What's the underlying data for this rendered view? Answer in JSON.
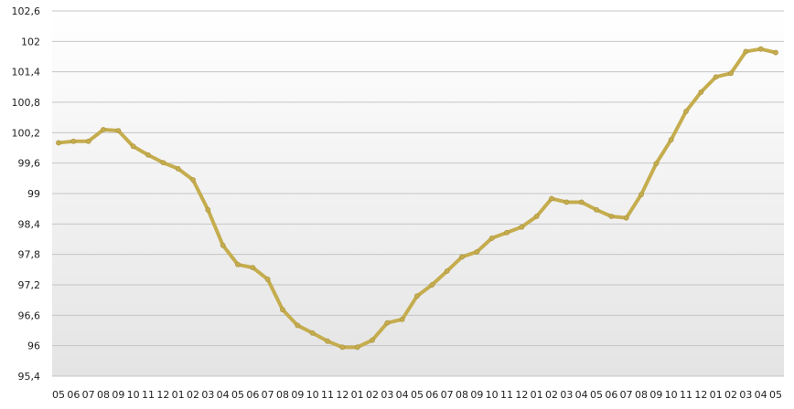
{
  "chart_data": {
    "type": "line",
    "title": "",
    "xlabel": "",
    "ylabel": "",
    "ylim": [
      95.4,
      102.6
    ],
    "yticks": [
      "95,4",
      "96",
      "96,6",
      "97,2",
      "97,8",
      "98,4",
      "99",
      "99,6",
      "100,2",
      "100,8",
      "101,4",
      "102",
      "102,6"
    ],
    "ytick_values": [
      95.4,
      96,
      96.6,
      97.2,
      97.8,
      98.4,
      99,
      99.6,
      100.2,
      100.8,
      101.4,
      102,
      102.6
    ],
    "grid": true,
    "legend": "none",
    "x": [
      "05",
      "06",
      "07",
      "08",
      "09",
      "10",
      "11",
      "12",
      "01",
      "02",
      "03",
      "04",
      "05",
      "06",
      "07",
      "08",
      "09",
      "10",
      "11",
      "12",
      "01",
      "02",
      "03",
      "04",
      "05",
      "06",
      "07",
      "08",
      "09",
      "10",
      "11",
      "12",
      "01",
      "02",
      "03",
      "04",
      "05",
      "06",
      "07",
      "08",
      "09",
      "10",
      "11",
      "12",
      "01",
      "02",
      "03",
      "04",
      "05"
    ],
    "series": [
      {
        "color": "#c5ad4f",
        "values": [
          100.0,
          100.03,
          100.03,
          100.26,
          100.24,
          99.93,
          99.76,
          99.61,
          99.49,
          99.27,
          98.68,
          97.98,
          97.6,
          97.54,
          97.31,
          96.71,
          96.4,
          96.25,
          96.09,
          95.97,
          95.97,
          96.11,
          96.45,
          96.52,
          96.98,
          97.2,
          97.47,
          97.75,
          97.85,
          98.12,
          98.23,
          98.34,
          98.55,
          98.9,
          98.83,
          98.83,
          98.68,
          98.55,
          98.52,
          98.98,
          99.59,
          100.06,
          100.62,
          101.0,
          101.3,
          101.37,
          101.8,
          101.85,
          101.78
        ]
      }
    ]
  }
}
